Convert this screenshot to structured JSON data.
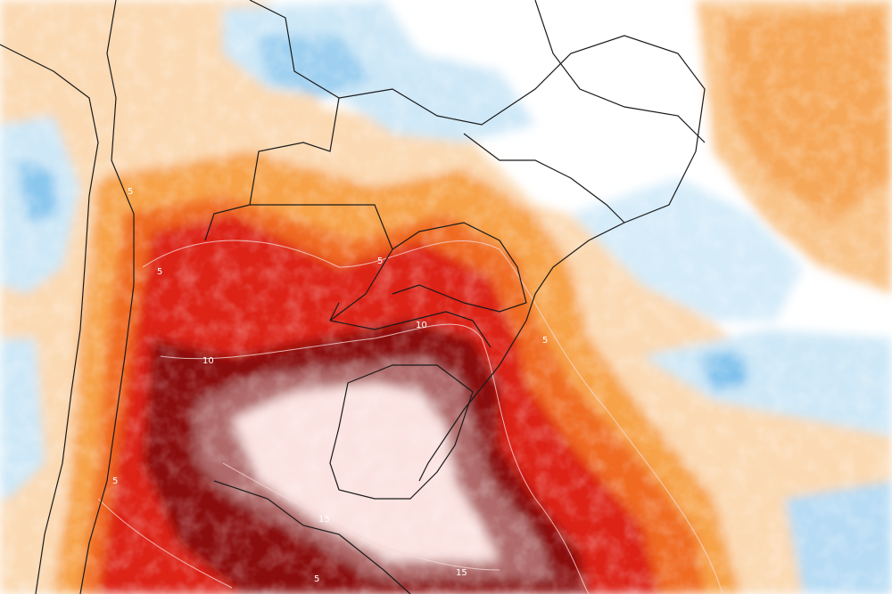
{
  "map": {
    "contour_labels": [
      "5",
      "5",
      "5",
      "5",
      "5",
      "5",
      "10",
      "10",
      "15",
      "15"
    ],
    "colors": {
      "anomaly_extreme": "#fbe3e1",
      "anomaly_very_high": "#7a0c0c",
      "anomaly_high": "#d81e1e",
      "anomaly_medium": "#f05a1c",
      "anomaly_low": "#f7a24a",
      "anomaly_slight": "#fbd4a4",
      "neutral": "#ffffff",
      "cool_slight": "#cfe8f7",
      "cool": "#8cc8ee",
      "cool_strong": "#3a9ee0",
      "border": "#1a1a1a",
      "contour": "#f4d8d8"
    }
  }
}
